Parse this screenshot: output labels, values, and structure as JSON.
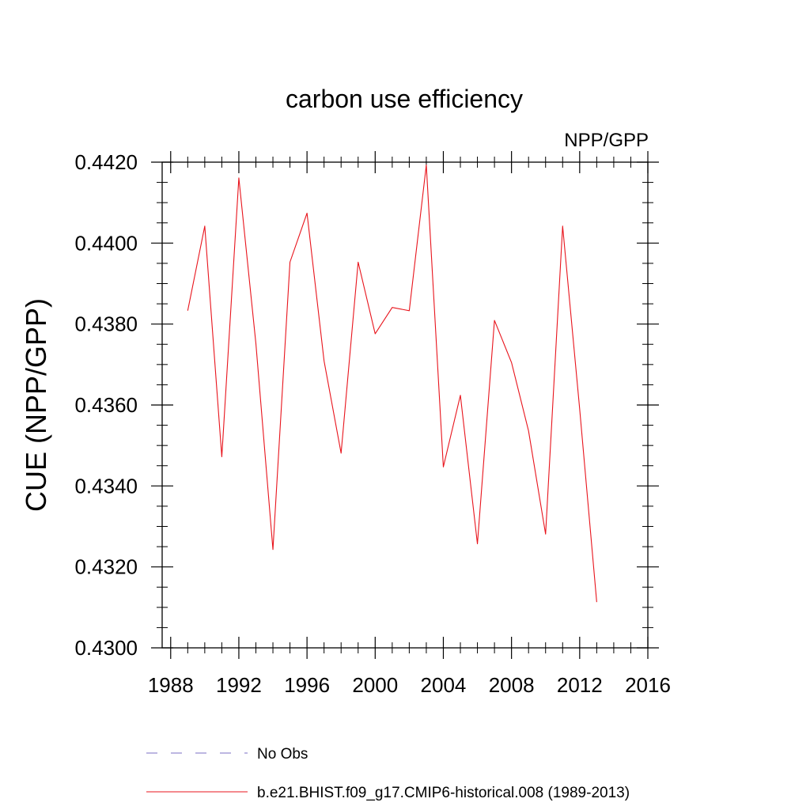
{
  "chart_data": {
    "type": "line",
    "title": "carbon use efficiency",
    "subtitle": "NPP/GPP",
    "ylabel": "CUE  (NPP/GPP)",
    "xlabel": "",
    "xlim": [
      1987.5,
      2016
    ],
    "ylim": [
      0.43,
      0.442
    ],
    "x_ticks": [
      "1988",
      "1992",
      "1996",
      "2000",
      "2004",
      "2008",
      "2012",
      "2016"
    ],
    "y_ticks": [
      "0.4300",
      "0.4320",
      "0.4340",
      "0.4360",
      "0.4380",
      "0.4400",
      "0.4420"
    ],
    "grid": false,
    "legend_position": "bottom",
    "series": [
      {
        "name": "No Obs",
        "color": "#7b6fc4",
        "style": "dashed",
        "x": [],
        "values": []
      },
      {
        "name": "b.e21.BHIST.f09_g17.CMIP6-historical.008 (1989-2013)",
        "color": "#e8141c",
        "style": "solid",
        "x": [
          1989,
          1990,
          1991,
          1992,
          1993,
          1994,
          1995,
          1996,
          1997,
          1998,
          1999,
          2000,
          2001,
          2002,
          2003,
          2004,
          2005,
          2006,
          2007,
          2008,
          2009,
          2010,
          2011,
          2012,
          2013
        ],
        "values": [
          0.43833,
          0.44042,
          0.43472,
          0.44161,
          0.43752,
          0.43243,
          0.43953,
          0.44074,
          0.43709,
          0.43481,
          0.43953,
          0.43776,
          0.43841,
          0.43833,
          0.44193,
          0.43447,
          0.43624,
          0.43257,
          0.43809,
          0.43705,
          0.43536,
          0.43281,
          0.44042,
          0.4359,
          0.43113
        ]
      }
    ]
  }
}
